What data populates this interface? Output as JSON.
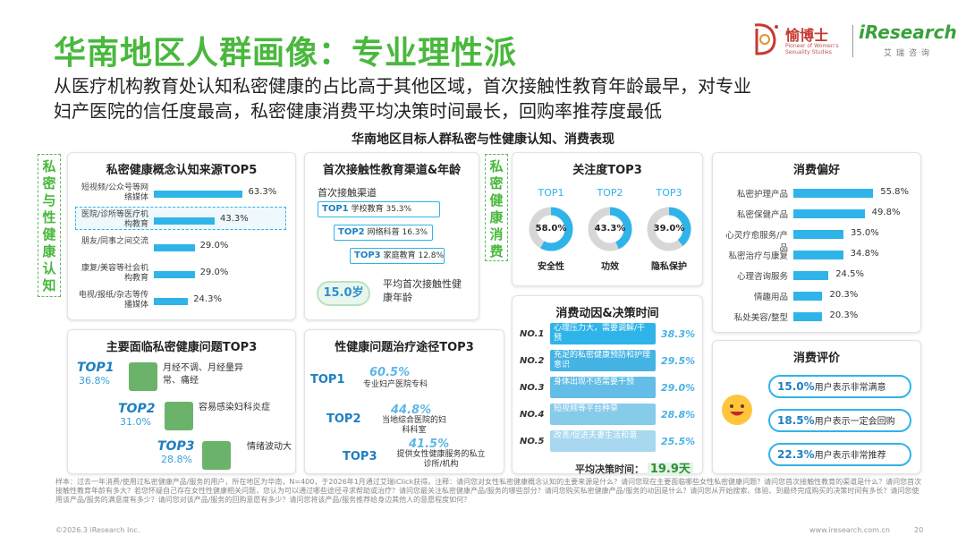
{
  "header": {
    "title": "华南地区人群画像：专业理性派",
    "subtitle": "从医疗机构教育处认知私密健康的占比高于其他区域，首次接触性教育年龄最早，对专业妇产医院的信任度最高，私密健康消费平均决策时间最长，回购率推荐度最低"
  },
  "logo": {
    "brand_cn": "愉博士",
    "brand_en": "Pioneer of Women's Sexuality Studies",
    "partner": "iResearch",
    "partner_cn": "艾瑞咨询"
  },
  "section_title": "华南地区目标人群私密与性健康认知、消费表现",
  "vertical_labels": {
    "left": "私密与性健康认知",
    "right": "私密健康消费"
  },
  "colors": {
    "primary_green": "#49b83d",
    "bar_blue": "#2fb4e9",
    "dark_blue": "#1e7fc2"
  },
  "chart_data": [
    {
      "id": "awareness_sources",
      "type": "bar",
      "title": "私密健康概念认知来源TOP5",
      "categories": [
        "短视频/公众号等网络媒体",
        "医院/诊所等医疗机构教育",
        "朋友/同事之间交流",
        "康复/美容等社会机构教育",
        "电视/报纸/杂志等传播媒体"
      ],
      "values": [
        63.3,
        43.3,
        29.0,
        29.0,
        24.3
      ],
      "labels": [
        "63.3%",
        "43.3%",
        "29.0%",
        "29.0%",
        "24.3%"
      ],
      "highlight_index": 1
    },
    {
      "id": "sex_ed_channel",
      "type": "bar",
      "title": "首次接触性教育渠道&年龄",
      "subtitle": "首次接触渠道",
      "categories": [
        "学校教育",
        "网络科普",
        "家庭教育"
      ],
      "ranks": [
        "TOP1",
        "TOP2",
        "TOP3"
      ],
      "values": [
        35.3,
        16.3,
        12.8
      ],
      "labels": [
        "35.3%",
        "16.3%",
        "12.8%"
      ],
      "avg_age": "15.0岁",
      "avg_age_label": "平均首次接触性健康年龄"
    },
    {
      "id": "attention_top3",
      "type": "pie",
      "title": "关注度TOP3",
      "ranks": [
        "TOP1",
        "TOP2",
        "TOP3"
      ],
      "categories": [
        "安全性",
        "功效",
        "隐私保护"
      ],
      "values": [
        58.0,
        43.3,
        39.0
      ],
      "labels": [
        "58.0%",
        "43.3%",
        "39.0%"
      ]
    },
    {
      "id": "consumption_pref",
      "type": "bar",
      "title": "消费偏好",
      "categories": [
        "私密护理产品",
        "私密保健产品",
        "心灵疗愈服务/产品",
        "私密治疗与康复",
        "心理咨询服务",
        "情趣用品",
        "私处美容/整型"
      ],
      "values": [
        55.8,
        49.8,
        35.0,
        34.8,
        24.5,
        20.3,
        20.3
      ],
      "labels": [
        "55.8%",
        "49.8%",
        "35.0%",
        "34.8%",
        "24.5%",
        "20.3%",
        "20.3%"
      ]
    },
    {
      "id": "main_problems",
      "type": "table",
      "title": "主要面临私密健康问题TOP3",
      "ranks": [
        "TOP1",
        "TOP2",
        "TOP3"
      ],
      "values": [
        36.8,
        31.0,
        28.8
      ],
      "labels": [
        "36.8%",
        "31.0%",
        "28.8%"
      ],
      "categories": [
        "月经不调、月经量异常、痛经",
        "容易感染妇科炎症",
        "情绪波动大"
      ]
    },
    {
      "id": "treatment_paths",
      "type": "table",
      "title": "性健康问题治疗途径TOP3",
      "ranks": [
        "TOP1",
        "TOP2",
        "TOP3"
      ],
      "values": [
        60.5,
        44.8,
        41.5
      ],
      "labels": [
        "60.5%",
        "44.8%",
        "41.5%"
      ],
      "categories": [
        "专业妇产医院专科",
        "当地综合医院的妇科科室",
        "提供女性健康服务的私立诊所/机构"
      ]
    },
    {
      "id": "motivation",
      "type": "bar",
      "title": "消费动因&决策时间",
      "ranks": [
        "NO.1",
        "NO.2",
        "NO.3",
        "NO.4",
        "NO.5"
      ],
      "categories": [
        "心理压力大，需要调解/干预",
        "充足的私密健康预防和护理意识",
        "身体出现不适需要干预",
        "短视频等平台种草",
        "改善/促进夫妻生活和谐"
      ],
      "values": [
        38.3,
        29.5,
        29.0,
        28.8,
        25.5
      ],
      "labels": [
        "38.3%",
        "29.5%",
        "29.0%",
        "28.8%",
        "25.5%"
      ],
      "avg_decision_label": "平均决策时间：",
      "avg_decision_value": "19.9天"
    },
    {
      "id": "evaluation",
      "type": "table",
      "title": "消费评价",
      "values": [
        15.0,
        18.5,
        22.3
      ],
      "labels": [
        "15.0%",
        "18.5%",
        "22.3%"
      ],
      "categories": [
        "用户表示非常满意",
        "用户表示一定会回购",
        "用户表示非常推荐"
      ]
    }
  ],
  "footnote": "样本：过去一年消费/使用过私密健康产品/服务的用户，所在地区为华南，N=400，于2026年1月通过艾瑞iClick获得。注释：请问您对女性私密健康概念认知的主要来源是什么？请问您现在主要面临哪些女性私密健康问题？请问您首次接触性教育的渠道是什么？请问您首次接触性教育年龄有多大？若您怀疑自己存在女性性健康相关问题，您认为可以通过哪些途径寻求帮助或治疗？请问您最关注私密健康产品/服务的哪些部分？请问您购买私密健康产品/服务的动因是什么？请问您从开始搜索、体验、到最终完成购买的决策时间有多长？请问您使用该产品/服务的满意度有多少？请问您对该产品/服务的回购意愿有多少？请问您将该产品/服务推荐给身边其他人的意愿程度如何？",
  "footer": {
    "copyright": "©2026.3 iResearch Inc.",
    "website": "www.iresearch.com.cn",
    "page": "20"
  }
}
